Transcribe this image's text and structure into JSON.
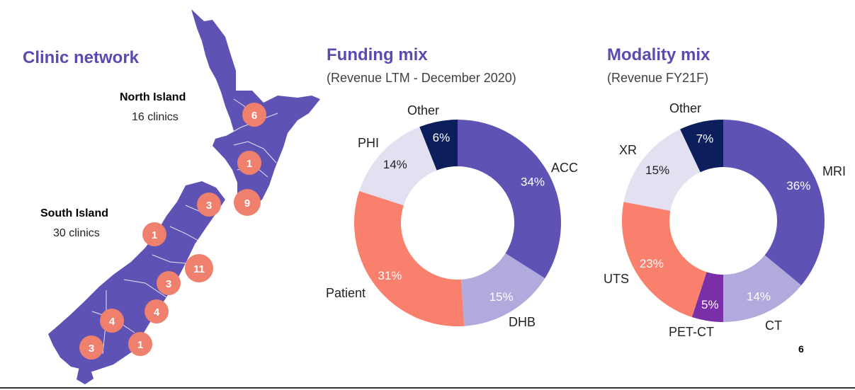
{
  "clinic_network": {
    "title": "Clinic network",
    "north_island": {
      "name": "North Island",
      "count_label": "16 clinics"
    },
    "south_island": {
      "name": "South Island",
      "count_label": "30 clinics"
    },
    "markers": [
      "6",
      "1",
      "9",
      "3",
      "1",
      "11",
      "3",
      "4",
      "4",
      "1",
      "3"
    ]
  },
  "colors": {
    "accent": "#5b4bb0",
    "acc_mri": "#5e52b4",
    "light_purple": "#b1aadc",
    "salmon": "#fa806e",
    "pale": "#e2e0f1",
    "navy": "#0c1f5c",
    "pet_ct": "#7a2fa8",
    "map": "#5e52b4",
    "marker": "#f0806e"
  },
  "page_number": "6",
  "chart_data": [
    {
      "type": "pie",
      "title": "Funding mix",
      "subtitle": "(Revenue LTM - December 2020)",
      "categories": [
        "ACC",
        "DHB",
        "Patient",
        "PHI",
        "Other"
      ],
      "values": [
        34,
        15,
        31,
        14,
        6
      ],
      "value_labels": [
        "34%",
        "15%",
        "31%",
        "14%",
        "6%"
      ],
      "colors": [
        "#5e52b4",
        "#b1aadc",
        "#fa806e",
        "#e2e0f1",
        "#0c1f5c"
      ],
      "label_colors": [
        "#ffffff",
        "#ffffff",
        "#ffffff",
        "#222222",
        "#ffffff"
      ]
    },
    {
      "type": "pie",
      "title": "Modality mix",
      "subtitle": "(Revenue FY21F)",
      "categories": [
        "MRI",
        "CT",
        "PET-CT",
        "UTS",
        "XR",
        "Other"
      ],
      "values": [
        36,
        14,
        5,
        23,
        15,
        7
      ],
      "value_labels": [
        "36%",
        "14%",
        "5%",
        "23%",
        "15%",
        "7%"
      ],
      "colors": [
        "#5e52b4",
        "#b1aadc",
        "#7a2fa8",
        "#fa806e",
        "#e2e0f1",
        "#0c1f5c"
      ],
      "label_colors": [
        "#ffffff",
        "#ffffff",
        "#ffffff",
        "#ffffff",
        "#222222",
        "#ffffff"
      ]
    }
  ]
}
